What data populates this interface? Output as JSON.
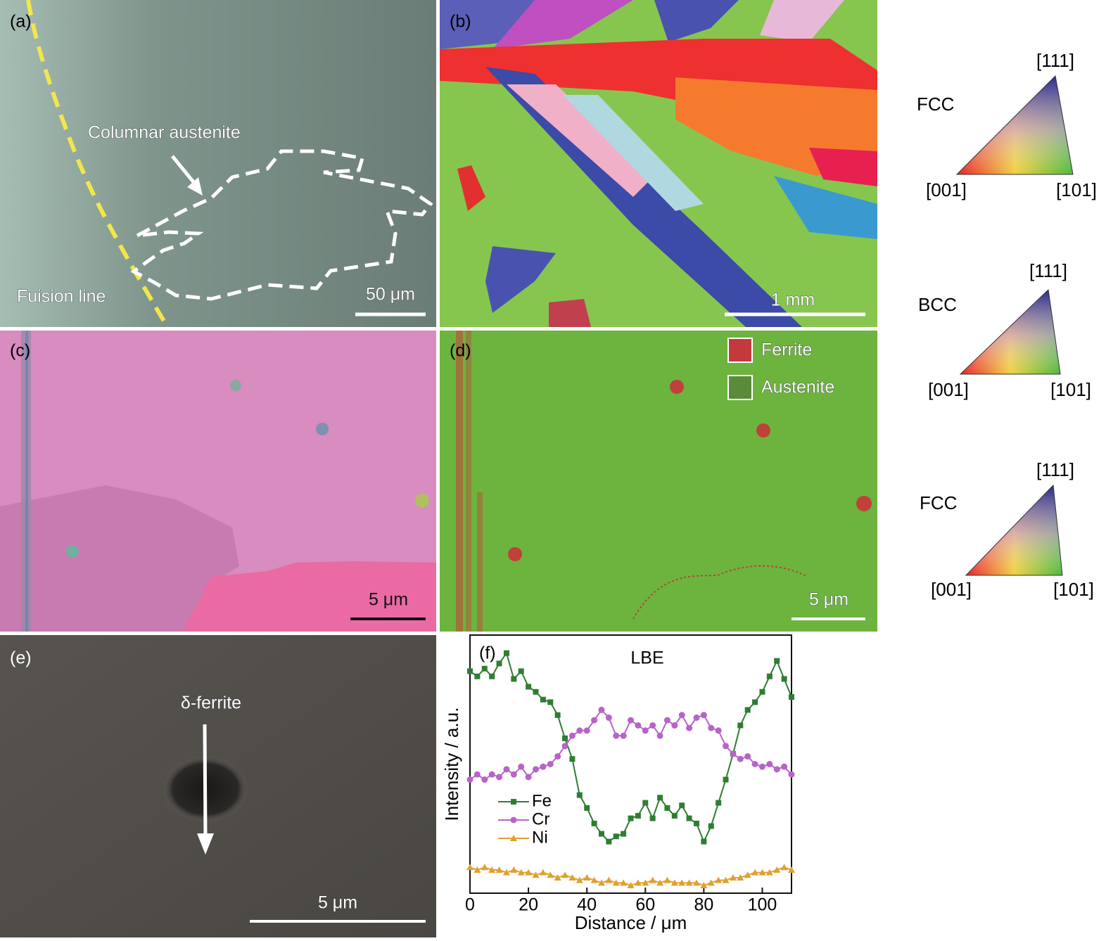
{
  "panel_a": {
    "label": "(a)",
    "annotation": "Columnar austenite",
    "fusion_label": "Fuision line",
    "scale_bar": "50 μm"
  },
  "panel_b": {
    "label": "(b)",
    "scale_bar": "1 mm"
  },
  "panel_c": {
    "label": "(c)",
    "scale_bar": "5 μm"
  },
  "panel_d": {
    "label": "(d)",
    "legend": [
      "Ferrite",
      "Austenite"
    ],
    "scale_bar": "5 μm"
  },
  "panel_e": {
    "label": "(e)",
    "annotation": "δ-ferrite",
    "scale_bar": "5 μm"
  },
  "ipf_keys": [
    {
      "phase": "FCC",
      "corners": [
        "[111]",
        "[001]",
        "[101]"
      ]
    },
    {
      "phase": "BCC",
      "corners": [
        "[111]",
        "[001]",
        "[101]"
      ]
    },
    {
      "phase": "FCC",
      "corners": [
        "[111]",
        "[001]",
        "[101]"
      ]
    }
  ],
  "chart_data": {
    "type": "line",
    "label": "(f)",
    "title": "LBE",
    "x_label": "Distance / μm",
    "y_label": "Intensity / a.u.",
    "x": [
      0,
      2.5,
      5,
      7.5,
      10,
      12.5,
      15,
      17.5,
      20,
      22.5,
      25,
      27.5,
      30,
      32.5,
      35,
      37.5,
      40,
      42.5,
      45,
      47.5,
      50,
      52.5,
      55,
      57.5,
      60,
      62.5,
      65,
      67.5,
      70,
      72.5,
      75,
      77.5,
      80,
      82.5,
      85,
      87.5,
      90,
      92.5,
      95,
      97.5,
      100,
      102.5,
      105,
      107.5,
      110
    ],
    "xlim": [
      0,
      110
    ],
    "xticks": [
      0,
      20,
      40,
      60,
      80,
      100
    ],
    "ylim": [
      0,
      100
    ],
    "legend_position": "left",
    "series": [
      {
        "name": "Fe",
        "color": "#2f7d32",
        "marker": "square",
        "values": [
          86,
          84,
          87,
          84,
          89,
          93,
          83,
          86,
          80,
          78,
          75,
          74,
          69,
          60,
          52,
          38,
          33,
          27,
          23,
          20,
          22,
          23,
          29,
          30,
          35,
          29,
          37,
          33,
          30,
          34,
          29,
          27,
          20,
          26,
          35,
          44,
          54,
          65,
          71,
          74,
          78,
          84,
          90,
          83,
          76
        ]
      },
      {
        "name": "Cr",
        "color": "#b763c8",
        "marker": "circle",
        "values": [
          44,
          46,
          44,
          46,
          45,
          48,
          46,
          49,
          45,
          48,
          49,
          50,
          53,
          57,
          61,
          63,
          63,
          67,
          71,
          68,
          61,
          61,
          67,
          65,
          63,
          65,
          61,
          67,
          65,
          69,
          64,
          68,
          69,
          64,
          63,
          57,
          54,
          52,
          53,
          50,
          49,
          50,
          48,
          49,
          46
        ]
      },
      {
        "name": "Ni",
        "color": "#e0a030",
        "marker": "triangle",
        "values": [
          10,
          9,
          10,
          9,
          9,
          8,
          9,
          8,
          8,
          7,
          8,
          7,
          6,
          7,
          6,
          5,
          6,
          5,
          4,
          5,
          4,
          4,
          3,
          4,
          4,
          5,
          4,
          5,
          4,
          4,
          4,
          4,
          3,
          4,
          5,
          5,
          6,
          6,
          7,
          8,
          8,
          8,
          9,
          10,
          9
        ]
      }
    ]
  }
}
